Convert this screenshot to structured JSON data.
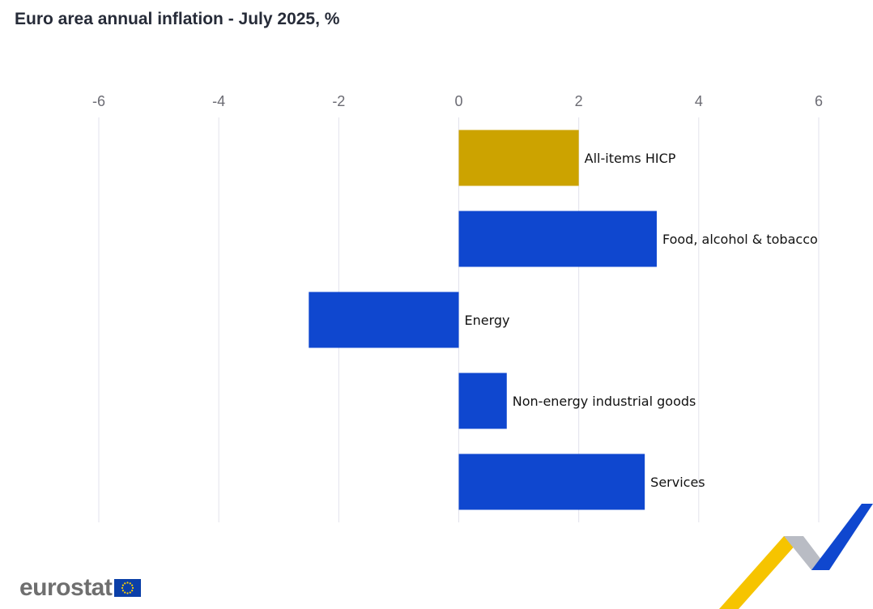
{
  "title": "Euro area annual inflation - July 2025, %",
  "colors": {
    "highlight": "#ccA300",
    "bar": "#0f47cf",
    "grid": "#e2e2ec",
    "ticks": "#6b6b73"
  },
  "chart_data": {
    "type": "bar",
    "orientation": "horizontal",
    "title": "Euro area annual inflation - July 2025, %",
    "categories": [
      "All-items HICP",
      "Food, alcohol & tobacco",
      "Energy",
      "Non-energy industrial goods",
      "Services"
    ],
    "values": [
      2.0,
      3.3,
      -2.5,
      0.8,
      3.1
    ],
    "highlight_index": 0,
    "xlim": [
      -6,
      6
    ],
    "xticks": [
      -6,
      -4,
      -2,
      0,
      2,
      4,
      6
    ],
    "xtick_labels": [
      "-6",
      "-4",
      "-2",
      "0",
      "2",
      "4",
      "6"
    ],
    "xaxis_position": "top",
    "grid": true,
    "legend": "none"
  },
  "branding": {
    "logo_text": "eurostat",
    "flag_icon": "eu-flag-icon",
    "ribbon_icon": "eurostat-ribbon-icon"
  }
}
